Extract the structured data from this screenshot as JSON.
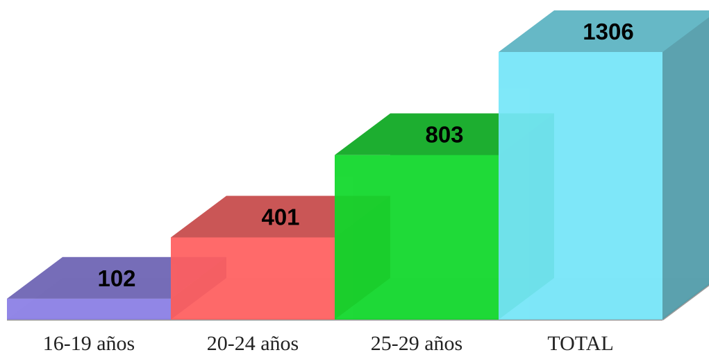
{
  "chart_data": {
    "type": "bar",
    "categories": [
      "16-19 años",
      "20-24 años",
      "25-29 años",
      "TOTAL"
    ],
    "values": [
      102,
      401,
      803,
      1306
    ],
    "title": "",
    "xlabel": "",
    "ylabel": "",
    "ylim": [
      0,
      1306
    ],
    "grid": false,
    "legend": "none",
    "data_labels": true,
    "style": "3d",
    "colors": [
      "#8a7ee6",
      "#ff5f5f",
      "#0fd82a",
      "#75e6f9"
    ]
  }
}
